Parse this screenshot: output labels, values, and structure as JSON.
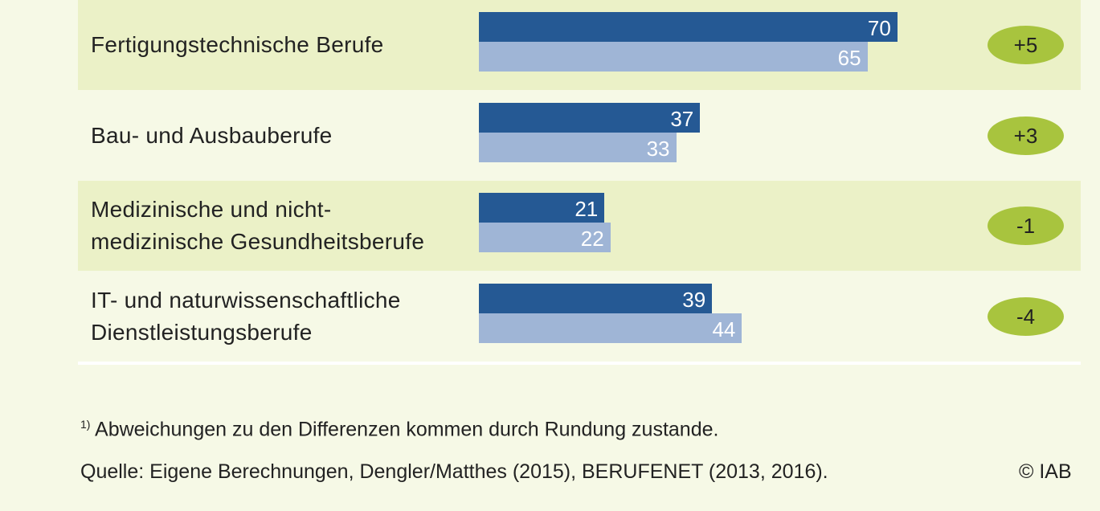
{
  "chart_data": {
    "type": "bar",
    "orientation": "horizontal",
    "categories": [
      "Fertigungstechnische Berufe",
      "Bau- und Ausbauberufe",
      "Medizinische und nicht-\nmedizinische Gesundheitsberufe",
      "IT- und naturwissenschaftliche\nDienstleistungsberufe"
    ],
    "series": [
      {
        "values": [
          70,
          37,
          21,
          39
        ],
        "color": "#255994"
      },
      {
        "values": [
          65,
          33,
          22,
          44
        ],
        "color": "#9fb5d6"
      }
    ],
    "differences": [
      "+5",
      "+3",
      "-1",
      "-4"
    ],
    "difference_color": "#a8c43e",
    "xlim": [
      0,
      100
    ],
    "grid": false
  },
  "footnote": {
    "marker": "1)",
    "text": " Abweichungen zu den Differenzen kommen durch Rundung zustande."
  },
  "source": "Quelle: Eigene Berechnungen, Dengler/Matthes (2015), BERUFENET (2013, 2016).",
  "copyright": "© IAB"
}
